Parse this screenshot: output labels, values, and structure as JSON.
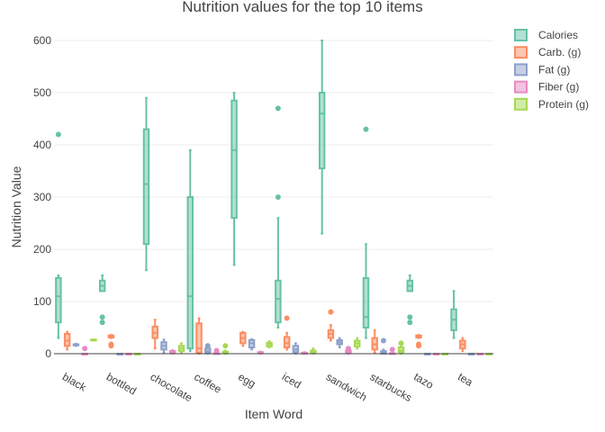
{
  "chart_data": {
    "type": "box",
    "title": "Nutrition values for the top 10 items",
    "xlabel": "Item Word",
    "ylabel": "Nutrition Value",
    "ylim": [
      -10,
      610
    ],
    "yticks": [
      0,
      100,
      200,
      300,
      400,
      500,
      600
    ],
    "grid": true,
    "legend_position": "top-right",
    "categories": [
      "black",
      "bottled",
      "chocolate",
      "coffee",
      "egg",
      "iced",
      "sandwich",
      "starbucks",
      "tazo",
      "tea"
    ],
    "series": [
      {
        "name": "Calories",
        "color": "#66c2a5",
        "boxes": [
          {
            "min": 30,
            "q1": 60,
            "median": 110,
            "q3": 145,
            "max": 150,
            "outliers": [
              420
            ]
          },
          {
            "min": 120,
            "q1": 120,
            "median": 130,
            "q3": 140,
            "max": 150,
            "outliers": [
              60,
              70
            ]
          },
          {
            "min": 160,
            "q1": 210,
            "median": 325,
            "q3": 430,
            "max": 490,
            "outliers": []
          },
          {
            "min": 5,
            "q1": 10,
            "median": 110,
            "q3": 300,
            "max": 390,
            "outliers": []
          },
          {
            "min": 170,
            "q1": 260,
            "median": 390,
            "q3": 485,
            "max": 500,
            "outliers": []
          },
          {
            "min": 50,
            "q1": 60,
            "median": 105,
            "q3": 140,
            "max": 260,
            "outliers": [
              300,
              470
            ]
          },
          {
            "min": 230,
            "q1": 355,
            "median": 460,
            "q3": 500,
            "max": 600,
            "outliers": []
          },
          {
            "min": 30,
            "q1": 50,
            "median": 70,
            "q3": 145,
            "max": 210,
            "outliers": [
              430
            ]
          },
          {
            "min": 120,
            "q1": 120,
            "median": 130,
            "q3": 140,
            "max": 150,
            "outliers": [
              60,
              70
            ]
          },
          {
            "min": 30,
            "q1": 45,
            "median": 65,
            "q3": 85,
            "max": 120,
            "outliers": []
          }
        ]
      },
      {
        "name": "Carb. (g)",
        "color": "#fc8d62",
        "boxes": [
          {
            "min": 8,
            "q1": 15,
            "median": 25,
            "q3": 38,
            "max": 42,
            "outliers": []
          },
          {
            "min": 30,
            "q1": 31,
            "median": 33,
            "q3": 35,
            "max": 36,
            "outliers": [
              15,
              18
            ]
          },
          {
            "min": 10,
            "q1": 30,
            "median": 40,
            "q3": 52,
            "max": 65,
            "outliers": []
          },
          {
            "min": 0,
            "q1": 2,
            "median": 10,
            "q3": 58,
            "max": 68,
            "outliers": []
          },
          {
            "min": 15,
            "q1": 20,
            "median": 30,
            "q3": 40,
            "max": 42,
            "outliers": []
          },
          {
            "min": 8,
            "q1": 12,
            "median": 20,
            "q3": 32,
            "max": 40,
            "outliers": [
              68
            ]
          },
          {
            "min": 25,
            "q1": 30,
            "median": 38,
            "q3": 45,
            "max": 55,
            "outliers": [
              80
            ]
          },
          {
            "min": 2,
            "q1": 8,
            "median": 18,
            "q3": 30,
            "max": 45,
            "outliers": []
          },
          {
            "min": 30,
            "q1": 31,
            "median": 33,
            "q3": 35,
            "max": 36,
            "outliers": [
              15,
              18
            ]
          },
          {
            "min": 5,
            "q1": 10,
            "median": 18,
            "q3": 25,
            "max": 30,
            "outliers": []
          }
        ]
      },
      {
        "name": "Fat (g)",
        "color": "#8da0cb",
        "boxes": [
          {
            "min": 15,
            "q1": 16,
            "median": 17,
            "q3": 18,
            "max": 19,
            "outliers": []
          },
          {
            "min": 0,
            "q1": 0,
            "median": 0,
            "q3": 0,
            "max": 0,
            "outliers": []
          },
          {
            "min": 2,
            "q1": 8,
            "median": 15,
            "q3": 22,
            "max": 27,
            "outliers": []
          },
          {
            "min": 0,
            "q1": 2,
            "median": 5,
            "q3": 10,
            "max": 12,
            "outliers": [
              15
            ]
          },
          {
            "min": 8,
            "q1": 12,
            "median": 20,
            "q3": 26,
            "max": 28,
            "outliers": []
          },
          {
            "min": 0,
            "q1": 3,
            "median": 8,
            "q3": 15,
            "max": 20,
            "outliers": []
          },
          {
            "min": 12,
            "q1": 18,
            "median": 22,
            "q3": 26,
            "max": 30,
            "outliers": []
          },
          {
            "min": 0,
            "q1": 0,
            "median": 2,
            "q3": 5,
            "max": 8,
            "outliers": [
              25
            ]
          },
          {
            "min": 0,
            "q1": 0,
            "median": 0,
            "q3": 0,
            "max": 0,
            "outliers": []
          },
          {
            "min": 0,
            "q1": 0,
            "median": 0,
            "q3": 0,
            "max": 0,
            "outliers": []
          }
        ]
      },
      {
        "name": "Fiber (g)",
        "color": "#e78ac3",
        "boxes": [
          {
            "min": 0,
            "q1": 0,
            "median": 0,
            "q3": 0,
            "max": 0,
            "outliers": [
              10
            ]
          },
          {
            "min": 0,
            "q1": 0,
            "median": 0,
            "q3": 0,
            "max": 0,
            "outliers": []
          },
          {
            "min": 0,
            "q1": 1,
            "median": 3,
            "q3": 5,
            "max": 7,
            "outliers": []
          },
          {
            "min": 0,
            "q1": 0,
            "median": 0,
            "q3": 1,
            "max": 2,
            "outliers": [
              6
            ]
          },
          {
            "min": 0,
            "q1": 1,
            "median": 2,
            "q3": 3,
            "max": 4,
            "outliers": []
          },
          {
            "min": 0,
            "q1": 0,
            "median": 1,
            "q3": 2,
            "max": 3,
            "outliers": []
          },
          {
            "min": 0,
            "q1": 2,
            "median": 4,
            "q3": 6,
            "max": 8,
            "outliers": [
              10
            ]
          },
          {
            "min": 0,
            "q1": 0,
            "median": 0,
            "q3": 1,
            "max": 2,
            "outliers": [
              8
            ]
          },
          {
            "min": 0,
            "q1": 0,
            "median": 0,
            "q3": 0,
            "max": 0,
            "outliers": []
          },
          {
            "min": 0,
            "q1": 0,
            "median": 0,
            "q3": 0,
            "max": 0,
            "outliers": []
          }
        ]
      },
      {
        "name": "Protein (g)",
        "color": "#a6d854",
        "boxes": [
          {
            "min": 27,
            "q1": 27,
            "median": 27,
            "q3": 27,
            "max": 27,
            "outliers": []
          },
          {
            "min": 0,
            "q1": 0,
            "median": 0,
            "q3": 0,
            "max": 0,
            "outliers": []
          },
          {
            "min": 2,
            "q1": 5,
            "median": 10,
            "q3": 15,
            "max": 20,
            "outliers": []
          },
          {
            "min": 0,
            "q1": 1,
            "median": 2,
            "q3": 4,
            "max": 6,
            "outliers": [
              15
            ]
          },
          {
            "min": 12,
            "q1": 14,
            "median": 18,
            "q3": 21,
            "max": 24,
            "outliers": []
          },
          {
            "min": 0,
            "q1": 2,
            "median": 4,
            "q3": 6,
            "max": 10,
            "outliers": []
          },
          {
            "min": 10,
            "q1": 14,
            "median": 20,
            "q3": 25,
            "max": 30,
            "outliers": []
          },
          {
            "min": 0,
            "q1": 3,
            "median": 6,
            "q3": 12,
            "max": 15,
            "outliers": [
              20
            ]
          },
          {
            "min": 0,
            "q1": 0,
            "median": 0,
            "q3": 0,
            "max": 0,
            "outliers": []
          },
          {
            "min": 0,
            "q1": 0,
            "median": 0,
            "q3": 0,
            "max": 0,
            "outliers": []
          }
        ]
      }
    ]
  }
}
